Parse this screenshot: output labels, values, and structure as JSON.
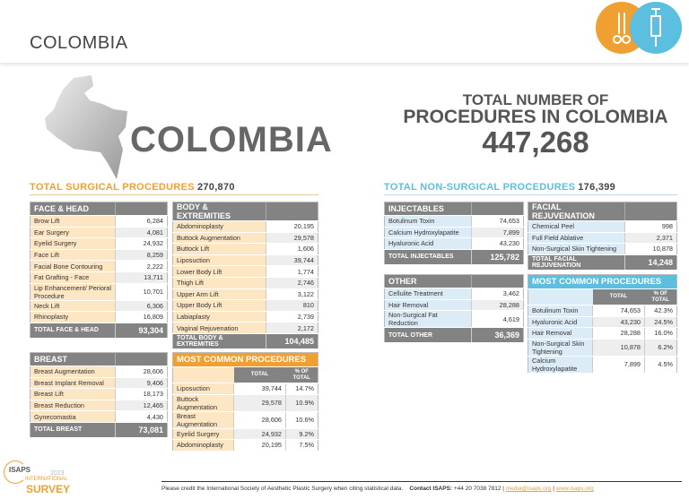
{
  "header": {
    "title": "COLOMBIA",
    "icons": [
      "surgical-scissors-icon",
      "syringe-icon"
    ],
    "colors": {
      "orange": "#f0a030",
      "blue": "#5cbfe0"
    }
  },
  "country_name": "COLOMBIA",
  "total": {
    "line1": "TOTAL NUMBER OF",
    "line2": "PROCEDURES IN COLOMBIA",
    "value": "447,268"
  },
  "surgical": {
    "heading": "TOTAL SURGICAL PROCEDURES",
    "value": "270,870",
    "face_head": {
      "title": "FACE & HEAD",
      "rows": [
        [
          "Brow Lift",
          "6,284"
        ],
        [
          "Ear Surgery",
          "4,081"
        ],
        [
          "Eyelid Surgery",
          "24,932"
        ],
        [
          "Face Lift",
          "8,259"
        ],
        [
          "Facial Bone Contouring",
          "2,222"
        ],
        [
          "Fat Grafting - Face",
          "13,711"
        ],
        [
          "Lip Enhancement/ Perioral Procedure",
          "10,701"
        ],
        [
          "Neck Lift",
          "6,306"
        ],
        [
          "Rhinoplasty",
          "16,809"
        ]
      ],
      "total_label": "TOTAL FACE & HEAD",
      "total": "93,304"
    },
    "body": {
      "title": "BODY & EXTREMITIES",
      "rows": [
        [
          "Abdominoplasty",
          "20,195"
        ],
        [
          "Buttock Augmentation",
          "29,578"
        ],
        [
          "Buttock Lift",
          "1,606"
        ],
        [
          "Liposuction",
          "39,744"
        ],
        [
          "Lower Body Lift",
          "1,774"
        ],
        [
          "Thigh Lift",
          "2,746"
        ],
        [
          "Upper Arm Lift",
          "3,122"
        ],
        [
          "Upper Body Lift",
          "810"
        ],
        [
          "Labiaplasty",
          "2,739"
        ],
        [
          "Vaginal Rejuvenation",
          "2,172"
        ]
      ],
      "total_label": "TOTAL BODY & EXTREMITIES",
      "total": "104,485"
    },
    "breast": {
      "title": "BREAST",
      "rows": [
        [
          "Breast Augmentation",
          "28,606"
        ],
        [
          "Breast Implant Removal",
          "9,406"
        ],
        [
          "Breast Lift",
          "18,173"
        ],
        [
          "Breast Reduction",
          "12,465"
        ],
        [
          "Gynecomastia",
          "4,430"
        ]
      ],
      "total_label": "TOTAL BREAST",
      "total": "73,081"
    },
    "most_common": {
      "title": "MOST COMMON PROCEDURES",
      "col_total": "TOTAL",
      "col_pct": "% OF TOTAL",
      "rows": [
        [
          "Liposuction",
          "39,744",
          "14.7%"
        ],
        [
          "Buttock Augmentation",
          "29,578",
          "10.9%"
        ],
        [
          "Breast Augmentation",
          "28,606",
          "10.6%"
        ],
        [
          "Eyelid Surgery",
          "24,932",
          "9.2%"
        ],
        [
          "Abdominoplasty",
          "20,195",
          "7.5%"
        ]
      ]
    }
  },
  "nonsurgical": {
    "heading": "TOTAL NON-SURGICAL PROCEDURES",
    "value": "176,399",
    "injectables": {
      "title": "INJECTABLES",
      "rows": [
        [
          "Botulinum Toxin",
          "74,653"
        ],
        [
          "Calcium Hydroxylapatite",
          "7,899"
        ],
        [
          "Hyaluronic Acid",
          "43,230"
        ]
      ],
      "total_label": "TOTAL INJECTABLES",
      "total": "125,782"
    },
    "facial": {
      "title": "FACIAL REJUVENATION",
      "rows": [
        [
          "Chemical Peel",
          "998"
        ],
        [
          "Full Field Ablative",
          "2,371"
        ],
        [
          "Non-Surgical Skin Tightening",
          "10,878"
        ]
      ],
      "total_label": "TOTAL FACIAL REJUVENATION",
      "total": "14,248"
    },
    "other": {
      "title": "OTHER",
      "rows": [
        [
          "Cellulite Treatment",
          "3,462"
        ],
        [
          "Hair Removal",
          "28,288"
        ],
        [
          "Non-Surgical Fat Reduction",
          "4,619"
        ]
      ],
      "total_label": "TOTAL OTHER",
      "total": "36,369"
    },
    "most_common": {
      "title": "MOST COMMON PROCEDURES",
      "col_total": "TOTAL",
      "col_pct": "% OF TOTAL",
      "rows": [
        [
          "Botulinum Toxin",
          "74,653",
          "42.3%"
        ],
        [
          "Hyaluronic Acid",
          "43,230",
          "24.5%"
        ],
        [
          "Hair Removal",
          "28,288",
          "16.0%"
        ],
        [
          "Non-Surgical Skin Tightening",
          "10,878",
          "6.2%"
        ],
        [
          "Calcium Hydroxylapatite",
          "7,899",
          "4.5%"
        ]
      ]
    }
  },
  "logo": {
    "org": "ISAPS",
    "year": "2023",
    "line1": "INTERNATIONAL",
    "line2": "SURVEY"
  },
  "footer": {
    "credit": "Please credit the International Society of Aesthetic Plastic Surgery when citing statistical data.",
    "contact_label": "Contact ISAPS:",
    "phone": "+44 20 7038 7812",
    "email": "media@isaps.org",
    "website": "www.isaps.org"
  }
}
